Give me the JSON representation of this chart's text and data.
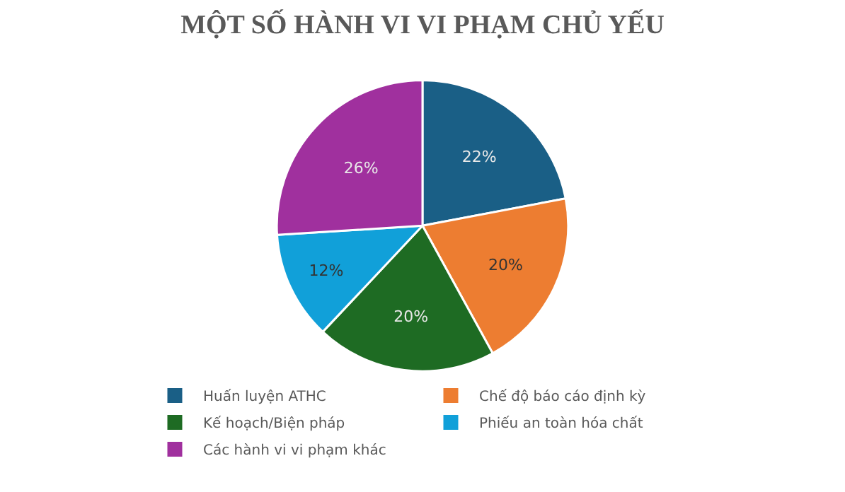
{
  "chart_data": {
    "type": "pie",
    "title": "MỘT SỐ HÀNH VI VI PHẠM CHỦ YẾU",
    "categories": [
      "Huấn luyện ATHC",
      "Chế độ báo cáo định kỳ",
      "Kế hoạch/Biện pháp",
      "Phiếu an toàn hóa chất",
      "Các hành vi vi phạm khác"
    ],
    "values": [
      22,
      20,
      20,
      12,
      26
    ],
    "colors": [
      "#1a5f86",
      "#ed7d31",
      "#1e6b23",
      "#11a0d9",
      "#a0309e"
    ],
    "value_labels": [
      "22%",
      "20%",
      "20%",
      "12%",
      "26%"
    ],
    "legend": "bottom"
  }
}
